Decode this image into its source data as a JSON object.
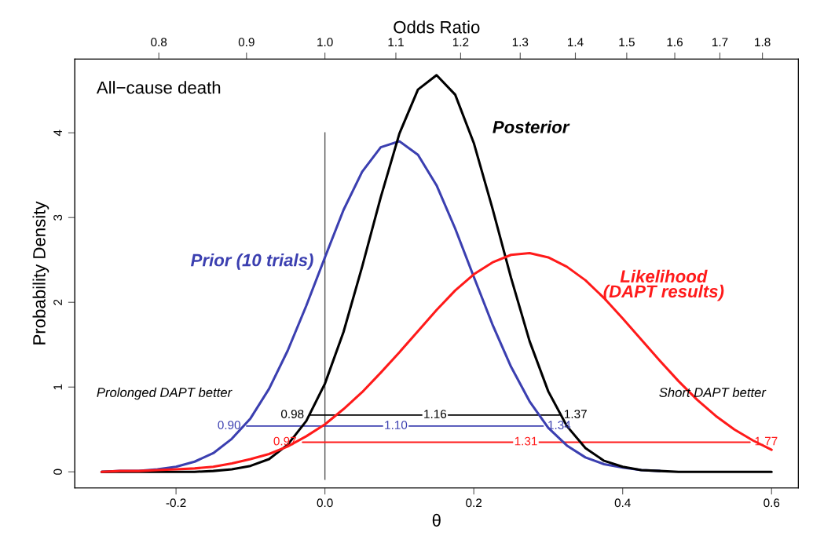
{
  "chart_data": {
    "type": "line",
    "xlabel": "θ",
    "ylabel": "Probability Density",
    "x2label": "Odds Ratio",
    "xlim": [
      -0.336,
      0.636
    ],
    "xticks": [
      -0.2,
      {
        "value": 0,
        "label": "0.0"
      },
      0.2,
      0.4,
      0.6
    ],
    "x2lim": [
      0.7146,
      1.889
    ],
    "log": "x2",
    "x2ticks": [
      0.8,
      0.9,
      {
        "value": 1,
        "label": "1.0"
      },
      1.1,
      1.2,
      1.3,
      1.4,
      1.5,
      1.6,
      1.7,
      1.8
    ],
    "ylim": [
      -0.19,
      4.87
    ],
    "yticks": [
      0,
      1,
      2,
      3,
      4
    ],
    "x": [
      -0.3,
      -0.275,
      -0.25,
      -0.225,
      -0.2,
      -0.175,
      -0.15,
      -0.125,
      -0.1,
      -0.075,
      -0.05,
      -0.025,
      0.0,
      0.025,
      0.05,
      0.075,
      0.1,
      0.125,
      0.15,
      0.175,
      0.2,
      0.225,
      0.25,
      0.275,
      0.3,
      0.325,
      0.35,
      0.375,
      0.4,
      0.425,
      0.45,
      0.475,
      0.5,
      0.525,
      0.55,
      0.575,
      0.6
    ],
    "line_style": "solid",
    "marker": "none",
    "series": [
      {
        "name": "Prior (10 trials)",
        "color": "#3b3fb0",
        "values": [
          0.0,
          0.01,
          0.01,
          0.03,
          0.06,
          0.12,
          0.22,
          0.39,
          0.63,
          0.98,
          1.43,
          1.96,
          2.53,
          3.09,
          3.54,
          3.83,
          3.9,
          3.74,
          3.38,
          2.87,
          2.3,
          1.74,
          1.24,
          0.83,
          0.52,
          0.31,
          0.17,
          0.09,
          0.05,
          0.02,
          0.01,
          null,
          null,
          null,
          null,
          null,
          null
        ]
      },
      {
        "name": "Posterior",
        "color": "#000000",
        "values": [
          0.0,
          0.0,
          0.0,
          0.0,
          0.0,
          0.0,
          0.01,
          0.03,
          0.07,
          0.15,
          0.32,
          0.6,
          1.04,
          1.65,
          2.42,
          3.24,
          3.99,
          4.51,
          4.68,
          4.45,
          3.88,
          3.11,
          2.29,
          1.54,
          0.95,
          0.54,
          0.28,
          0.13,
          0.06,
          0.02,
          0.01,
          0.0,
          0.0,
          0.0,
          0.0,
          0.0,
          0.0
        ]
      },
      {
        "name": "Likelihood\n(DAPT results)",
        "color": "#ff1a1a",
        "values": [
          0.0,
          0.01,
          0.01,
          0.02,
          0.03,
          0.04,
          0.06,
          0.1,
          0.15,
          0.21,
          0.3,
          0.42,
          0.56,
          0.74,
          0.94,
          1.17,
          1.41,
          1.66,
          1.91,
          2.14,
          2.33,
          2.47,
          2.56,
          2.58,
          2.53,
          2.42,
          2.26,
          2.05,
          1.81,
          1.56,
          1.31,
          1.07,
          0.85,
          0.66,
          0.5,
          0.37,
          0.26
        ]
      },
      {
        "color": "#000000",
        "x": [
          -0.02,
          0.315
        ],
        "values": [
          0.67,
          0.67
        ]
      },
      {
        "color": "#3b3fb0",
        "x": [
          -0.105,
          0.293
        ],
        "values": [
          0.54,
          0.54
        ]
      },
      {
        "color": "#ff1a1a",
        "x": [
          -0.03,
          0.571
        ],
        "values": [
          0.35,
          0.35
        ]
      }
    ],
    "ref_lines": [
      {
        "axis": "x",
        "value": 0.0,
        "color": "#555555"
      }
    ],
    "annotations": [
      "All−cause death",
      "Prolonged DAPT better",
      "Short DAPT better",
      {
        "text": "0.98",
        "x": -0.02,
        "y": 0.67
      },
      {
        "text": "1.16",
        "x": 0.148,
        "y": 0.67
      },
      {
        "text": "1.37",
        "x": 0.315,
        "y": 0.67
      },
      {
        "text": "0.90",
        "x": -0.105,
        "y": 0.54
      },
      {
        "text": "1.10",
        "x": 0.0953,
        "y": 0.54
      },
      {
        "text": "1.34",
        "x": 0.293,
        "y": 0.54
      },
      {
        "text": "0.97",
        "x": -0.03,
        "y": 0.35
      },
      {
        "text": "1.31",
        "x": 0.27,
        "y": 0.35
      },
      {
        "text": "1.77",
        "x": 0.571,
        "y": 0.35
      }
    ]
  }
}
